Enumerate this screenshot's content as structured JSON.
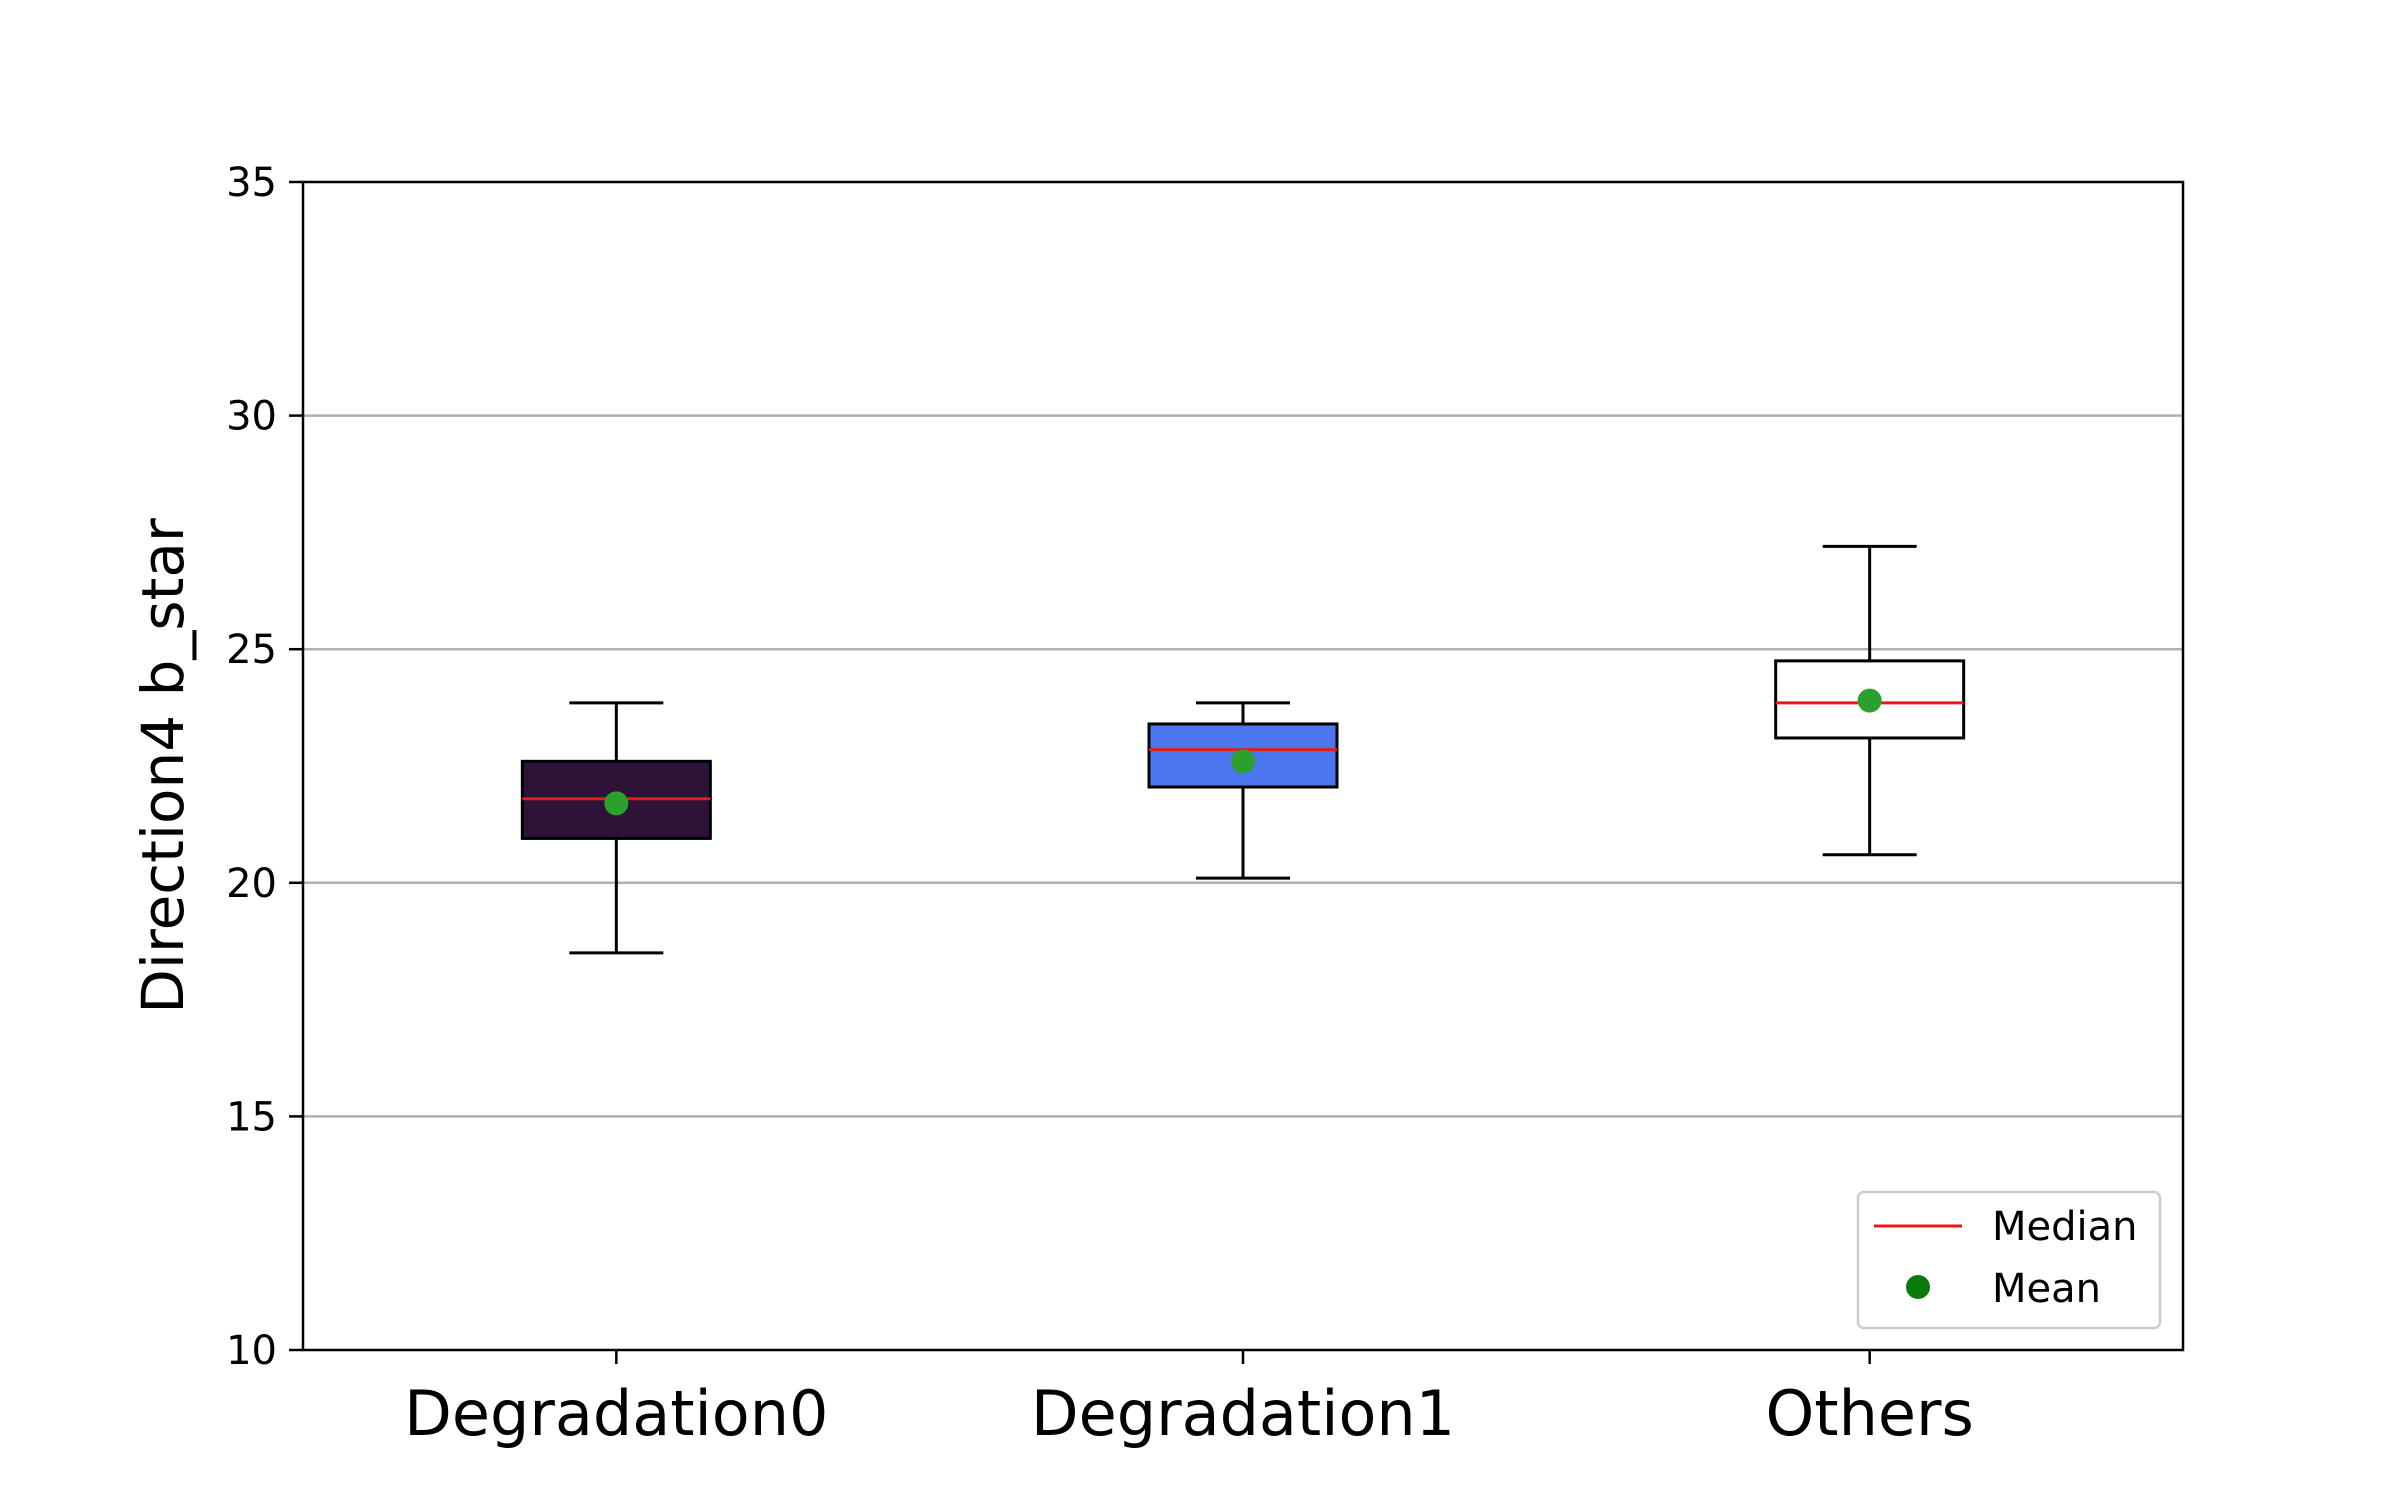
{
  "chart_data": {
    "type": "box",
    "ylabel": "Direction4   b_star",
    "xlabel": "",
    "title": "",
    "ylim": [
      10,
      35
    ],
    "yticks": [
      10,
      15,
      20,
      25,
      30,
      35
    ],
    "grid": "horizontal",
    "categories": [
      "Degradation0",
      "Degradation1",
      "Others"
    ],
    "boxes": [
      {
        "category": "Degradation0",
        "whisker_low": 18.5,
        "q1": 20.95,
        "median": 21.8,
        "q3": 22.6,
        "whisker_high": 23.85,
        "mean": 21.7,
        "color": "#2e1238"
      },
      {
        "category": "Degradation1",
        "whisker_low": 20.1,
        "q1": 22.05,
        "median": 22.85,
        "q3": 23.4,
        "whisker_high": 23.85,
        "mean": 22.6,
        "color": "#4a77ee"
      },
      {
        "category": "Others",
        "whisker_low": 20.6,
        "q1": 23.1,
        "median": 23.85,
        "q3": 24.75,
        "whisker_high": 27.2,
        "mean": 23.9,
        "color": "#ffffff"
      }
    ],
    "legend": {
      "position": "bottom-right",
      "entries": [
        {
          "label": "Median",
          "marker": "line",
          "color": "#e41a1c"
        },
        {
          "label": "Mean",
          "marker": "dot",
          "color": "#0a7a0a"
        }
      ]
    },
    "mean_marker_color": "#2ca02c",
    "median_color": "#e41a1c"
  }
}
